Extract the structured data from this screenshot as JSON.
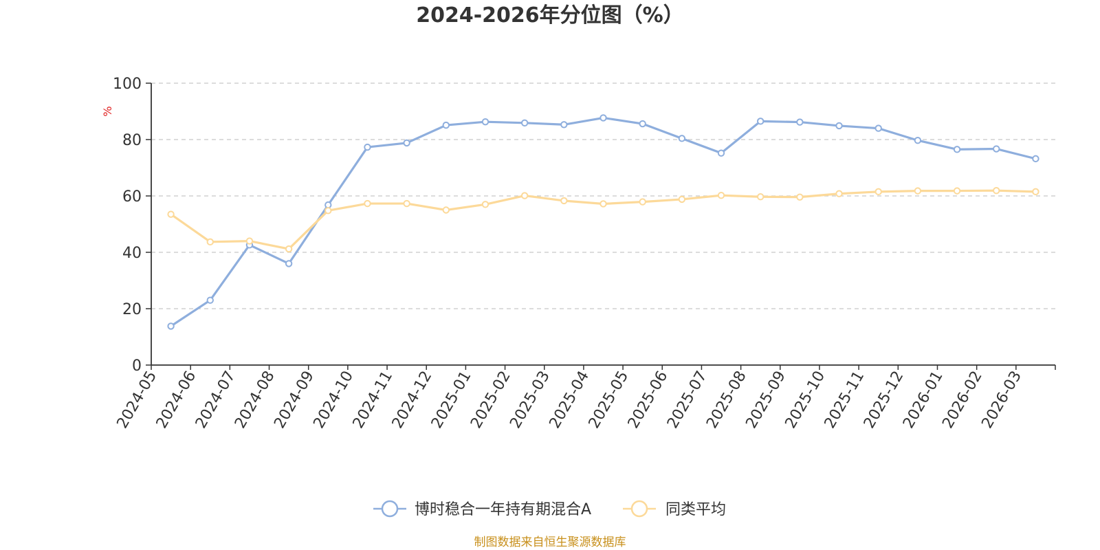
{
  "chart_data": {
    "type": "line",
    "title": "2024-2026年分位图（%）",
    "unit_label": "%",
    "ylim": [
      0,
      100
    ],
    "y_ticks": [
      0,
      20,
      40,
      60,
      80,
      100
    ],
    "grid": true,
    "legend_position": "bottom-center",
    "categories": [
      "2024-05",
      "2024-06",
      "2024-07",
      "2024-08",
      "2024-09",
      "2024-10",
      "2024-11",
      "2024-12",
      "2025-01",
      "2025-02",
      "2025-03",
      "2025-04",
      "2025-05",
      "2025-06",
      "2025-07",
      "2025-08",
      "2025-09",
      "2025-10",
      "2025-11",
      "2025-12",
      "2026-01",
      "2026-02",
      "2026-03"
    ],
    "series": [
      {
        "name": "博时稳合一年持有期混合A",
        "color": "#8eaedd",
        "values": [
          13.8,
          23.0,
          42.6,
          36.0,
          56.8,
          77.3,
          78.8,
          85.1,
          86.3,
          85.9,
          85.3,
          87.7,
          85.6,
          80.4,
          75.2,
          86.5,
          86.2,
          84.9,
          84.0,
          79.7,
          76.5,
          76.7,
          73.2
        ]
      },
      {
        "name": "同类平均",
        "color": "#fcd999",
        "values": [
          53.5,
          43.7,
          44.0,
          41.2,
          54.8,
          57.3,
          57.3,
          55.0,
          57.0,
          60.1,
          58.3,
          57.2,
          57.9,
          58.8,
          60.2,
          59.7,
          59.6,
          60.8,
          61.5,
          61.8,
          61.8,
          61.9,
          61.5
        ]
      }
    ],
    "source": "制图数据来自恒生聚源数据库"
  }
}
